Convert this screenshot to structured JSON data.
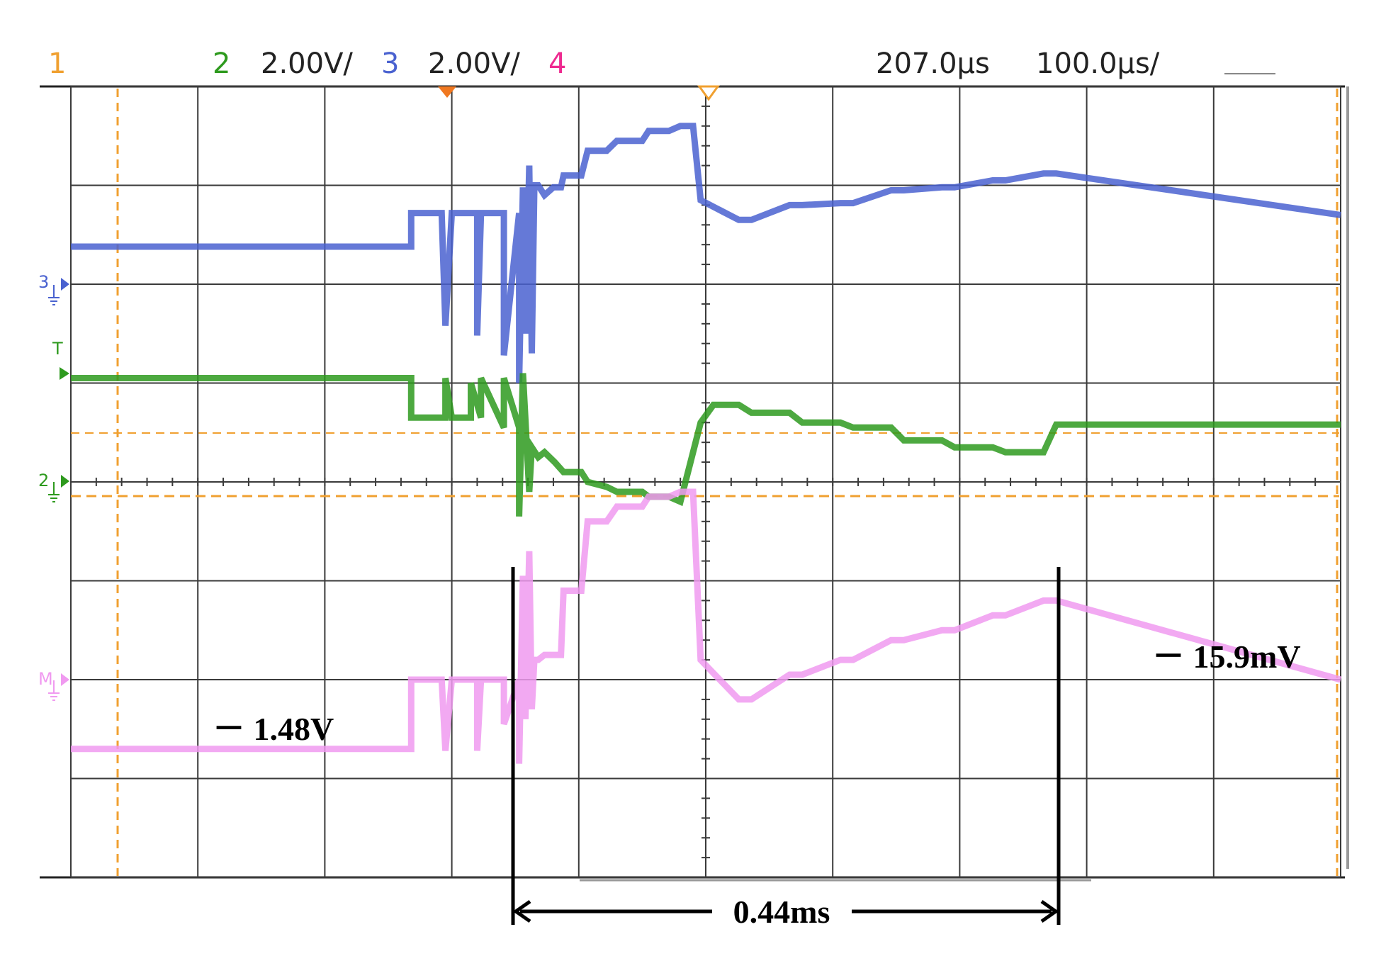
{
  "header": {
    "ch1_label": "1",
    "ch2_label": "2",
    "ch2_scale": "2.00V/",
    "ch3_label": "3",
    "ch3_scale": "2.00V/",
    "ch4_label": "4",
    "time_position": "207.0µs",
    "time_scale": "100.0µs/"
  },
  "markers": {
    "ch3_ground": "3",
    "trigger": "T",
    "ch2_ground": "2",
    "ch4_ground": "M"
  },
  "annotations": {
    "left_level": "－ 1.48V",
    "right_level": "－ 15.9mV",
    "duration": "0.44ms"
  },
  "colors": {
    "ch1": "#f0a030",
    "ch2": "#2e9a1e",
    "ch3": "#4a62d0",
    "ch4": "#f09af0",
    "grid": "#3a3a3a",
    "cursor": "#f0a030"
  },
  "chart_data": {
    "type": "line",
    "title": "",
    "xlabel": "",
    "ylabel": "",
    "x_unit": "µs",
    "y_unit": "div",
    "xlim": [
      -292,
      708
    ],
    "ylim": [
      -4,
      4
    ],
    "grid": true,
    "x_divisions": 10,
    "y_divisions": 8,
    "series": [
      {
        "name": "3",
        "x": [
          -292,
          -24,
          -24,
          0,
          0,
          3,
          8,
          8,
          28,
          28,
          31,
          34,
          34,
          49,
          49,
          61,
          61,
          64,
          66,
          69,
          71,
          73,
          76,
          81,
          88,
          94,
          96,
          110,
          115,
          130,
          138,
          158,
          163,
          179,
          188,
          198,
          204,
          234,
          244,
          274,
          284,
          314,
          324,
          354,
          364,
          394,
          404,
          434,
          444,
          474,
          484,
          708
        ],
        "y": [
          2.38,
          2.38,
          2.72,
          2.72,
          2.72,
          1.58,
          2.72,
          2.72,
          2.72,
          1.48,
          2.72,
          2.72,
          2.72,
          2.72,
          1.28,
          2.72,
          1.0,
          2.98,
          1.5,
          3.2,
          1.3,
          3.0,
          3.0,
          2.9,
          2.98,
          2.98,
          3.1,
          3.1,
          3.35,
          3.35,
          3.45,
          3.45,
          3.55,
          3.55,
          3.6,
          3.6,
          2.85,
          2.65,
          2.65,
          2.8,
          2.8,
          2.82,
          2.82,
          2.95,
          2.95,
          2.98,
          2.98,
          3.05,
          3.05,
          3.12,
          3.12,
          2.7
        ]
      },
      {
        "name": "2",
        "x": [
          -292,
          -24,
          -24,
          3,
          3,
          8,
          23,
          23,
          31,
          31,
          49,
          49,
          61,
          61,
          64,
          69,
          71,
          76,
          81,
          89,
          96,
          110,
          115,
          130,
          138,
          158,
          163,
          179,
          188,
          204,
          214,
          234,
          244,
          274,
          284,
          314,
          324,
          354,
          364,
          394,
          404,
          434,
          444,
          474,
          484,
          708
        ],
        "y": [
          1.05,
          1.05,
          0.65,
          0.65,
          1.05,
          0.65,
          0.65,
          1.0,
          0.65,
          1.05,
          0.55,
          1.05,
          0.55,
          -0.35,
          1.1,
          -0.1,
          0.35,
          0.25,
          0.3,
          0.2,
          0.1,
          0.1,
          0.0,
          -0.05,
          -0.1,
          -0.1,
          -0.15,
          -0.15,
          -0.2,
          0.6,
          0.78,
          0.78,
          0.7,
          0.7,
          0.6,
          0.6,
          0.55,
          0.55,
          0.42,
          0.42,
          0.35,
          0.35,
          0.3,
          0.3,
          0.58,
          0.58
        ]
      },
      {
        "name": "4",
        "x": [
          -292,
          -24,
          -24,
          0,
          0,
          3,
          8,
          8,
          28,
          28,
          31,
          34,
          34,
          49,
          49,
          61,
          61,
          64,
          66,
          69,
          71,
          73,
          76,
          81,
          88,
          94,
          96,
          110,
          115,
          130,
          138,
          158,
          163,
          179,
          188,
          198,
          204,
          234,
          244,
          274,
          284,
          314,
          324,
          354,
          364,
          394,
          404,
          434,
          444,
          474,
          484,
          708
        ],
        "y": [
          -2.7,
          -2.7,
          -2.0,
          -2.0,
          -2.0,
          -2.72,
          -2.0,
          -2.0,
          -2.0,
          -2.72,
          -2.0,
          -2.0,
          -2.0,
          -2.0,
          -2.45,
          -2.0,
          -2.85,
          -0.95,
          -2.4,
          -0.7,
          -2.3,
          -1.8,
          -1.8,
          -1.75,
          -1.75,
          -1.75,
          -1.1,
          -1.1,
          -0.4,
          -0.4,
          -0.25,
          -0.25,
          -0.15,
          -0.15,
          -0.1,
          -0.1,
          -1.8,
          -2.2,
          -2.2,
          -1.95,
          -1.95,
          -1.8,
          -1.8,
          -1.6,
          -1.6,
          -1.5,
          -1.5,
          -1.35,
          -1.35,
          -1.2,
          -1.2,
          -2.0
        ]
      }
    ]
  }
}
